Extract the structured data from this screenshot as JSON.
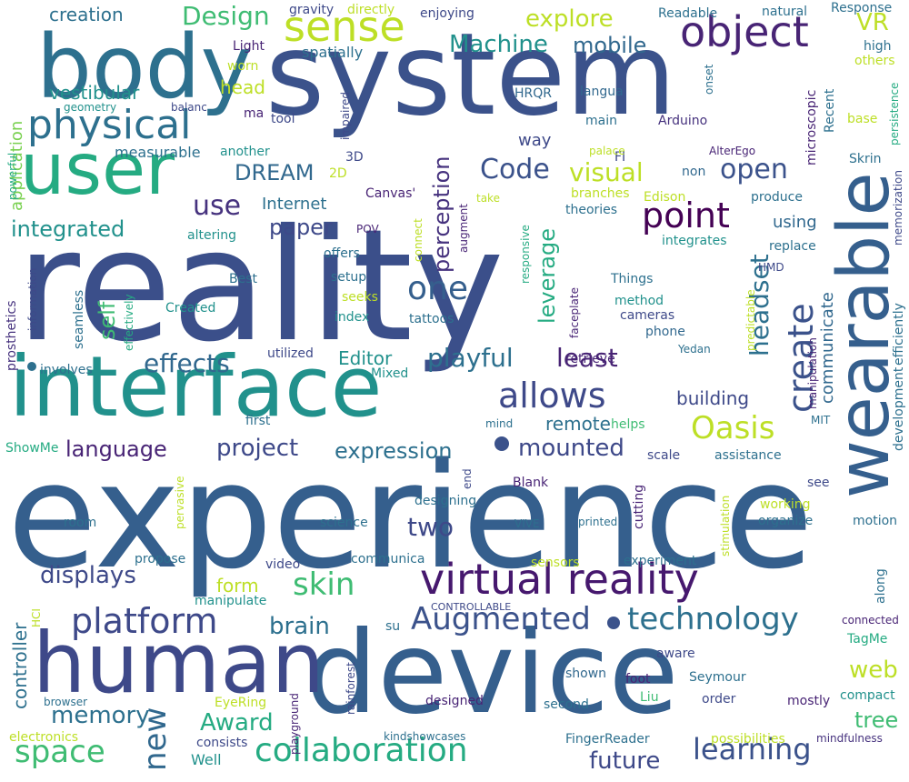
{
  "palette": {
    "dark_purple": "#46186e",
    "indigo": "#3b4f8a",
    "slate_blue": "#355f8d",
    "steel_blue": "#2d708e",
    "teal": "#21918c",
    "green_teal": "#25ab82",
    "green": "#3fbc73",
    "lime": "#7ad151",
    "yellow_green": "#bddf26",
    "yellow": "#e6e419"
  },
  "words": [
    {
      "text": "reality",
      "size": 170,
      "color": "#3b4f8a"
    },
    {
      "text": "experience",
      "size": 160,
      "color": "#355f8d"
    },
    {
      "text": "system",
      "size": 125,
      "color": "#3b528b"
    },
    {
      "text": "device",
      "size": 125,
      "color": "#355f8d"
    },
    {
      "text": "interface",
      "size": 92,
      "color": "#21918c"
    },
    {
      "text": "body",
      "size": 96,
      "color": "#2d708e"
    },
    {
      "text": "human",
      "size": 92,
      "color": "#3e4989"
    },
    {
      "text": "wearable",
      "size": 78,
      "color": "#355f8d"
    },
    {
      "text": "user",
      "size": 78,
      "color": "#25ab82"
    },
    {
      "text": "virtual reality",
      "size": 46,
      "color": "#46186e"
    },
    {
      "text": "sense",
      "size": 46,
      "color": "#bddf26"
    },
    {
      "text": "object",
      "size": 46,
      "color": "#482475"
    },
    {
      "text": "physical",
      "size": 44,
      "color": "#2d708e"
    },
    {
      "text": "platform",
      "size": 38,
      "color": "#3e4989"
    },
    {
      "text": "allows",
      "size": 38,
      "color": "#3e4989"
    },
    {
      "text": "point",
      "size": 38,
      "color": "#440154"
    },
    {
      "text": "one",
      "size": 36,
      "color": "#355f8d"
    },
    {
      "text": "create",
      "size": 38,
      "color": "#3b528b"
    },
    {
      "text": "collaboration",
      "size": 36,
      "color": "#25ab82"
    },
    {
      "text": "technology",
      "size": 34,
      "color": "#2d708e"
    },
    {
      "text": "Augmented",
      "size": 34,
      "color": "#3b528b"
    },
    {
      "text": "Oasis",
      "size": 34,
      "color": "#bddf26"
    },
    {
      "text": "skin",
      "size": 34,
      "color": "#3fbc73"
    },
    {
      "text": "space",
      "size": 34,
      "color": "#3fbc73"
    },
    {
      "text": "new",
      "size": 34,
      "color": "#31688e"
    },
    {
      "text": "learning",
      "size": 32,
      "color": "#3b528b"
    },
    {
      "text": "headset",
      "size": 28,
      "color": "#2d708e"
    },
    {
      "text": "Code",
      "size": 30,
      "color": "#3b528b"
    },
    {
      "text": "open",
      "size": 30,
      "color": "#3b528b"
    },
    {
      "text": "use",
      "size": 30,
      "color": "#46327e"
    },
    {
      "text": "visual",
      "size": 28,
      "color": "#bddf26"
    },
    {
      "text": "playful",
      "size": 28,
      "color": "#2d708e"
    },
    {
      "text": "least",
      "size": 28,
      "color": "#482475"
    },
    {
      "text": "Design",
      "size": 28,
      "color": "#3fbc73"
    },
    {
      "text": "explore",
      "size": 26,
      "color": "#bddf26"
    },
    {
      "text": "Machine",
      "size": 26,
      "color": "#21918c"
    },
    {
      "text": "mobile",
      "size": 24,
      "color": "#31688e"
    },
    {
      "text": "VR",
      "size": 26,
      "color": "#bddf26"
    },
    {
      "text": "effects",
      "size": 28,
      "color": "#31688e"
    },
    {
      "text": "language",
      "size": 24,
      "color": "#482475"
    },
    {
      "text": "project",
      "size": 26,
      "color": "#3e4989"
    },
    {
      "text": "expression",
      "size": 24,
      "color": "#2d708e"
    },
    {
      "text": "mounted",
      "size": 26,
      "color": "#3e4989"
    },
    {
      "text": "two",
      "size": 28,
      "color": "#3e4989"
    },
    {
      "text": "future",
      "size": 26,
      "color": "#3e4989"
    },
    {
      "text": "displays",
      "size": 26,
      "color": "#3e4989"
    },
    {
      "text": "memory",
      "size": 26,
      "color": "#2d708e"
    },
    {
      "text": "Award",
      "size": 26,
      "color": "#25ab82"
    },
    {
      "text": "brain",
      "size": 26,
      "color": "#2d708e"
    },
    {
      "text": "web",
      "size": 26,
      "color": "#bddf26"
    },
    {
      "text": "tree",
      "size": 24,
      "color": "#3fbc73"
    },
    {
      "text": "paper",
      "size": 24,
      "color": "#3e4989"
    },
    {
      "text": "DREAM",
      "size": 24,
      "color": "#31688e"
    },
    {
      "text": "integrated",
      "size": 24,
      "color": "#21918c"
    },
    {
      "text": "perception",
      "size": 24,
      "color": "#46327e"
    },
    {
      "text": "leverage",
      "size": 24,
      "color": "#25ab82"
    },
    {
      "text": "self",
      "size": 24,
      "color": "#3fbc73"
    },
    {
      "text": "controller",
      "size": 20,
      "color": "#2d708e"
    },
    {
      "text": "form",
      "size": 20,
      "color": "#bddf26"
    },
    {
      "text": "building",
      "size": 20,
      "color": "#3e4989"
    },
    {
      "text": "remote",
      "size": 20,
      "color": "#2d708e"
    },
    {
      "text": "Editor",
      "size": 20,
      "color": "#21918c"
    },
    {
      "text": "Internet",
      "size": 18,
      "color": "#2d708e"
    },
    {
      "text": "vestibular",
      "size": 20,
      "color": "#21918c"
    },
    {
      "text": "creation",
      "size": 20,
      "color": "#2d708e"
    },
    {
      "text": "head",
      "size": 20,
      "color": "#bddf26"
    },
    {
      "text": "way",
      "size": 18,
      "color": "#3e4989"
    },
    {
      "text": "using",
      "size": 18,
      "color": "#31688e"
    },
    {
      "text": "communicate",
      "size": 18,
      "color": "#31688e"
    },
    {
      "text": "application",
      "size": 18,
      "color": "#7ad151"
    },
    {
      "text": "measurable",
      "size": 16,
      "color": "#2d708e"
    },
    {
      "text": "spatially",
      "size": 16,
      "color": "#2d708e"
    },
    {
      "text": "Light",
      "size": 14,
      "color": "#482475"
    },
    {
      "text": "worn",
      "size": 14,
      "color": "#bddf26"
    },
    {
      "text": "high",
      "size": 14,
      "color": "#2d708e"
    },
    {
      "text": "others",
      "size": 14,
      "color": "#bddf26"
    },
    {
      "text": "base",
      "size": 14,
      "color": "#bddf26"
    },
    {
      "text": "Skrin",
      "size": 14,
      "color": "#2d708e"
    },
    {
      "text": "Readable",
      "size": 14,
      "color": "#2d708e"
    },
    {
      "text": "natural",
      "size": 14,
      "color": "#2d708e"
    },
    {
      "text": "Response",
      "size": 14,
      "color": "#2d708e"
    },
    {
      "text": "enjoying",
      "size": 14,
      "color": "#3e4989"
    },
    {
      "text": "directly",
      "size": 14,
      "color": "#bddf26"
    },
    {
      "text": "gravity",
      "size": 14,
      "color": "#3e4989"
    },
    {
      "text": "HRQR",
      "size": 14,
      "color": "#31688e"
    },
    {
      "text": "langua",
      "size": 14,
      "color": "#31688e"
    },
    {
      "text": "main",
      "size": 14,
      "color": "#2d708e"
    },
    {
      "text": "Arduino",
      "size": 14,
      "color": "#46327e"
    },
    {
      "text": "microscopic",
      "size": 14,
      "color": "#482475"
    },
    {
      "text": "Recent",
      "size": 14,
      "color": "#2d708e"
    },
    {
      "text": "onset",
      "size": 12,
      "color": "#2d708e"
    },
    {
      "text": "persistence",
      "size": 12,
      "color": "#25ab82"
    },
    {
      "text": "AlterEgo",
      "size": 12,
      "color": "#482475"
    },
    {
      "text": "non",
      "size": 14,
      "color": "#31688e"
    },
    {
      "text": "FI",
      "size": 14,
      "color": "#3e4989"
    },
    {
      "text": "palace",
      "size": 12,
      "color": "#bddf26"
    },
    {
      "text": "branches",
      "size": 14,
      "color": "#bddf26"
    },
    {
      "text": "Edison",
      "size": 14,
      "color": "#bddf26"
    },
    {
      "text": "produce",
      "size": 14,
      "color": "#2d708e"
    },
    {
      "text": "theories",
      "size": 14,
      "color": "#2d708e"
    },
    {
      "text": "memorization",
      "size": 12,
      "color": "#3e4989"
    },
    {
      "text": "integrates",
      "size": 14,
      "color": "#21918c"
    },
    {
      "text": "replace",
      "size": 14,
      "color": "#2d708e"
    },
    {
      "text": "HMD",
      "size": 12,
      "color": "#3e4989"
    },
    {
      "text": "efficiently",
      "size": 14,
      "color": "#2d708e"
    },
    {
      "text": "development",
      "size": 14,
      "color": "#2d708e"
    },
    {
      "text": "Things",
      "size": 14,
      "color": "#2d708e"
    },
    {
      "text": "method",
      "size": 14,
      "color": "#21918c"
    },
    {
      "text": "cameras",
      "size": 14,
      "color": "#3e4989"
    },
    {
      "text": "phone",
      "size": 14,
      "color": "#31688e"
    },
    {
      "text": "Yedan",
      "size": 12,
      "color": "#2d708e"
    },
    {
      "text": "predictable",
      "size": 12,
      "color": "#bddf26"
    },
    {
      "text": "manipulation",
      "size": 12,
      "color": "#482475"
    },
    {
      "text": "retrieve",
      "size": 14,
      "color": "#482475"
    },
    {
      "text": "MIT",
      "size": 12,
      "color": "#2d708e"
    },
    {
      "text": "helps",
      "size": 14,
      "color": "#3fbc73"
    },
    {
      "text": "scale",
      "size": 14,
      "color": "#3e4989"
    },
    {
      "text": "assistance",
      "size": 14,
      "color": "#2d708e"
    },
    {
      "text": "see",
      "size": 14,
      "color": "#3e4989"
    },
    {
      "text": "working",
      "size": 14,
      "color": "#bddf26"
    },
    {
      "text": "organize",
      "size": 14,
      "color": "#2d708e"
    },
    {
      "text": "motion",
      "size": 14,
      "color": "#2d708e"
    },
    {
      "text": "stimulation",
      "size": 12,
      "color": "#bddf26"
    },
    {
      "text": "experiment",
      "size": 14,
      "color": "#2d708e"
    },
    {
      "text": "sensors",
      "size": 14,
      "color": "#bddf26"
    },
    {
      "text": "along",
      "size": 14,
      "color": "#2d708e"
    },
    {
      "text": "connected",
      "size": 12,
      "color": "#482475"
    },
    {
      "text": "TagMe",
      "size": 14,
      "color": "#25ab82"
    },
    {
      "text": "compact",
      "size": 14,
      "color": "#21918c"
    },
    {
      "text": "mostly",
      "size": 14,
      "color": "#482475"
    },
    {
      "text": "order",
      "size": 14,
      "color": "#3e4989"
    },
    {
      "text": "Seymour",
      "size": 14,
      "color": "#2d708e"
    },
    {
      "text": "Liu",
      "size": 14,
      "color": "#3fbc73"
    },
    {
      "text": "aware",
      "size": 14,
      "color": "#3e4989"
    },
    {
      "text": "shown",
      "size": 14,
      "color": "#31688e"
    },
    {
      "text": "foot",
      "size": 14,
      "color": "#482475"
    },
    {
      "text": "second",
      "size": 14,
      "color": "#2d708e"
    },
    {
      "text": "designed",
      "size": 14,
      "color": "#482475"
    },
    {
      "text": "FingerReader",
      "size": 14,
      "color": "#2d708e"
    },
    {
      "text": "possibilities",
      "size": 14,
      "color": "#bddf26"
    },
    {
      "text": "mindfulness",
      "size": 12,
      "color": "#46327e"
    },
    {
      "text": "kindshowcases",
      "size": 12,
      "color": "#2d708e"
    },
    {
      "text": "consists",
      "size": 14,
      "color": "#3e4989"
    },
    {
      "text": "Well",
      "size": 16,
      "color": "#21918c"
    },
    {
      "text": "electronics",
      "size": 14,
      "color": "#bddf26"
    },
    {
      "text": "browser",
      "size": 12,
      "color": "#2d708e"
    },
    {
      "text": "playground",
      "size": 12,
      "color": "#482475"
    },
    {
      "text": "rainforest",
      "size": 12,
      "color": "#3e4989"
    },
    {
      "text": "su",
      "size": 14,
      "color": "#2d708e"
    },
    {
      "text": "CONTROLLABLE",
      "size": 11,
      "color": "#3e4989"
    },
    {
      "text": "EyeRing",
      "size": 14,
      "color": "#bddf26"
    },
    {
      "text": "HCI",
      "size": 12,
      "color": "#bddf26"
    },
    {
      "text": "manipulate",
      "size": 14,
      "color": "#21918c"
    },
    {
      "text": "propose",
      "size": 14,
      "color": "#2d708e"
    },
    {
      "text": "video",
      "size": 14,
      "color": "#3e4989"
    },
    {
      "text": "communica",
      "size": 14,
      "color": "#2d708e"
    },
    {
      "text": "room",
      "size": 14,
      "color": "#2d708e"
    },
    {
      "text": "science",
      "size": 14,
      "color": "#2d708e"
    },
    {
      "text": "VIVE",
      "size": 12,
      "color": "#2d708e"
    },
    {
      "text": "printed",
      "size": 12,
      "color": "#2d708e"
    },
    {
      "text": "cutting",
      "size": 14,
      "color": "#482475"
    },
    {
      "text": "Blank",
      "size": 14,
      "color": "#482475"
    },
    {
      "text": "designing",
      "size": 14,
      "color": "#2d708e"
    },
    {
      "text": "end",
      "size": 12,
      "color": "#3e4989"
    },
    {
      "text": "pervasive",
      "size": 12,
      "color": "#bddf26"
    },
    {
      "text": "ShowMe",
      "size": 14,
      "color": "#25ab82"
    },
    {
      "text": "first",
      "size": 14,
      "color": "#2d708e"
    },
    {
      "text": "mind",
      "size": 12,
      "color": "#2d708e"
    },
    {
      "text": "Mixed",
      "size": 14,
      "color": "#21918c"
    },
    {
      "text": "utilized",
      "size": 14,
      "color": "#3e4989"
    },
    {
      "text": "involves",
      "size": 14,
      "color": "#2d708e"
    },
    {
      "text": "index",
      "size": 14,
      "color": "#21918c"
    },
    {
      "text": "tattoos",
      "size": 14,
      "color": "#2d708e"
    },
    {
      "text": "seeks",
      "size": 14,
      "color": "#bddf26"
    },
    {
      "text": "setup",
      "size": 14,
      "color": "#2d708e"
    },
    {
      "text": "offers",
      "size": 14,
      "color": "#2d708e"
    },
    {
      "text": "Created",
      "size": 14,
      "color": "#21918c"
    },
    {
      "text": "Best",
      "size": 14,
      "color": "#2d708e"
    },
    {
      "text": "altering",
      "size": 14,
      "color": "#21918c"
    },
    {
      "text": "POV",
      "size": 12,
      "color": "#482475"
    },
    {
      "text": "connect",
      "size": 12,
      "color": "#bddf26"
    },
    {
      "text": "responsive",
      "size": 12,
      "color": "#25ab82"
    },
    {
      "text": "augment",
      "size": 12,
      "color": "#482475"
    },
    {
      "text": "take",
      "size": 12,
      "color": "#bddf26"
    },
    {
      "text": "faceplate",
      "size": 12,
      "color": "#482475"
    },
    {
      "text": "seamless",
      "size": 14,
      "color": "#2d708e"
    },
    {
      "text": "effectively",
      "size": 12,
      "color": "#25ab82"
    },
    {
      "text": "prosthetics",
      "size": 14,
      "color": "#46327e"
    },
    {
      "text": "information",
      "size": 12,
      "color": "#3e4989"
    },
    {
      "text": "powerful",
      "size": 12,
      "color": "#25ab82"
    },
    {
      "text": "2D",
      "size": 14,
      "color": "#bddf26"
    },
    {
      "text": "3D",
      "size": 14,
      "color": "#3e4989"
    },
    {
      "text": "Canvas'",
      "size": 14,
      "color": "#482475"
    },
    {
      "text": "another",
      "size": 14,
      "color": "#21918c"
    },
    {
      "text": "tool",
      "size": 14,
      "color": "#3e4989"
    },
    {
      "text": "impaired",
      "size": 12,
      "color": "#3e4989"
    },
    {
      "text": "ma",
      "size": 14,
      "color": "#482475"
    },
    {
      "text": "balanc",
      "size": 12,
      "color": "#3e4989"
    },
    {
      "text": "geometry",
      "size": 12,
      "color": "#21918c"
    }
  ]
}
